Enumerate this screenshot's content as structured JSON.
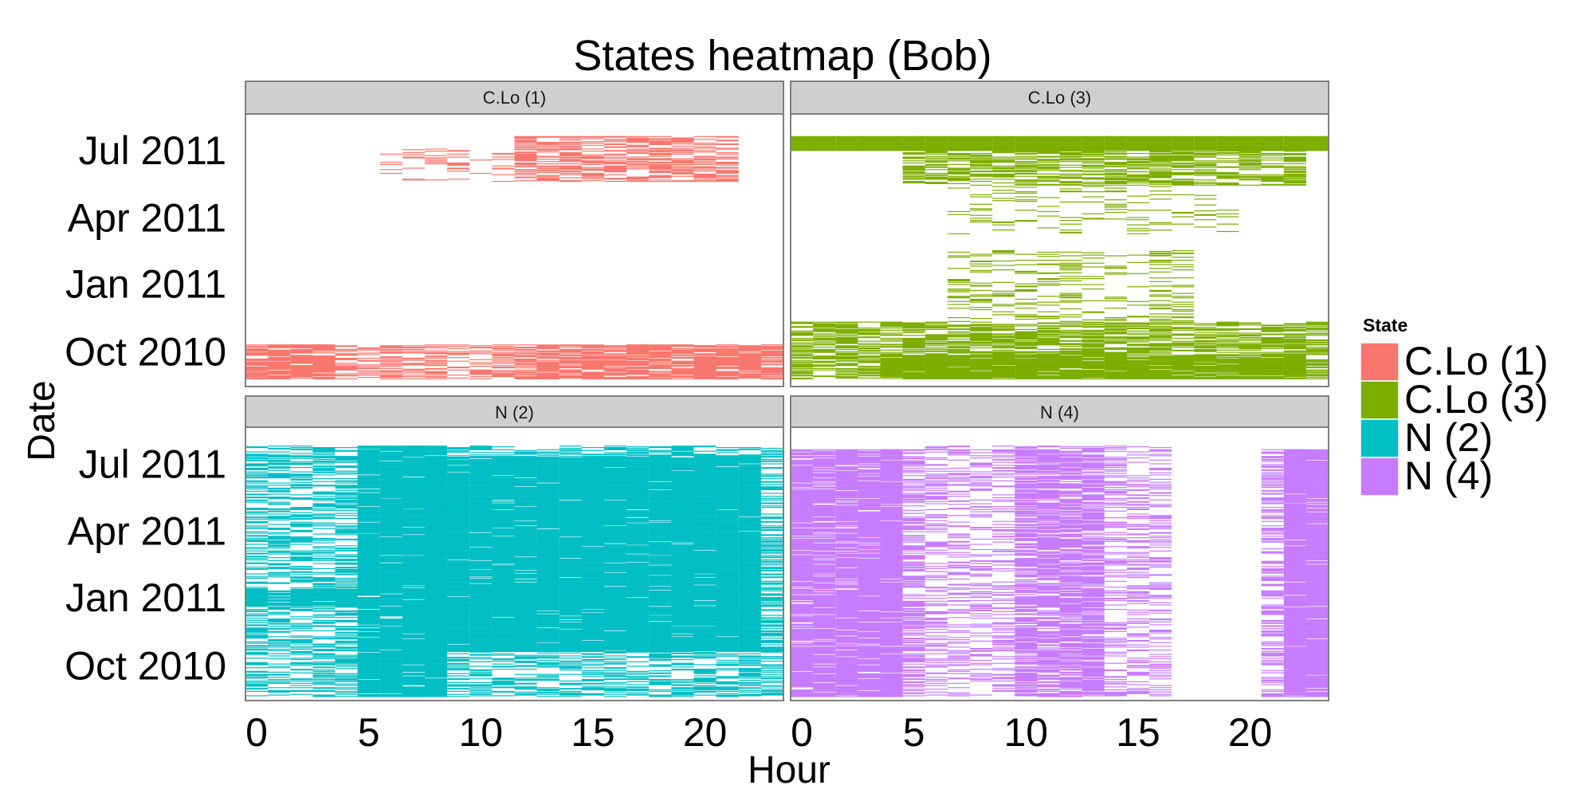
{
  "chart_data": {
    "type": "heatmap",
    "title": "States heatmap (Bob)",
    "xlabel": "Hour",
    "ylabel": "Date",
    "x_ticks": [
      "0",
      "5",
      "10",
      "15",
      "20"
    ],
    "x_tick_values": [
      0,
      5,
      10,
      15,
      20
    ],
    "xlim": [
      -0.5,
      23.5
    ],
    "y_ticks": [
      "Oct 2010",
      "Jan 2011",
      "Apr 2011",
      "Jul 2011"
    ],
    "y_tick_values": [
      "2010-10-01",
      "2011-01-01",
      "2011-04-01",
      "2011-07-01"
    ],
    "ylim": [
      "2010-08-15",
      "2011-08-20"
    ],
    "grid": false,
    "legend": {
      "title": "State",
      "position": "right",
      "entries": [
        "C.Lo (1)",
        "C.Lo (3)",
        "N (2)",
        "N (4)"
      ]
    },
    "panels": [
      {
        "name": "C.Lo (1)",
        "color": "#F8766D",
        "series_note": "sparse summer 2011 afternoons, autumn 2010 across all hours",
        "regions": [
          {
            "hours": [
              12,
              21
            ],
            "dates": [
              "2011-05-20",
              "2011-07-20"
            ],
            "density": 0.55
          },
          {
            "hours": [
              6,
              12
            ],
            "dates": [
              "2011-05-20",
              "2011-07-05"
            ],
            "density": 0.12
          },
          {
            "hours": [
              0,
              23
            ],
            "dates": [
              "2010-08-25",
              "2010-10-10"
            ],
            "density": 0.45
          },
          {
            "hours": [
              0,
              3
            ],
            "dates": [
              "2010-08-25",
              "2010-10-10"
            ],
            "density": 0.7
          },
          {
            "hours": [
              13,
              23
            ],
            "dates": [
              "2010-08-25",
              "2010-10-10"
            ],
            "density": 0.7
          }
        ]
      },
      {
        "name": "C.Lo (3)",
        "color": "#7CAE00",
        "series_note": "dense band July 2011, sparse spring, dense autumn 2010",
        "regions": [
          {
            "hours": [
              0,
              23
            ],
            "dates": [
              "2011-07-01",
              "2011-07-20"
            ],
            "density": 1.0
          },
          {
            "hours": [
              5,
              22
            ],
            "dates": [
              "2011-05-15",
              "2011-07-01"
            ],
            "density": 0.55
          },
          {
            "hours": [
              7,
              19
            ],
            "dates": [
              "2011-03-10",
              "2011-05-15"
            ],
            "density": 0.1
          },
          {
            "hours": [
              7,
              17
            ],
            "dates": [
              "2010-11-10",
              "2011-02-15"
            ],
            "density": 0.18
          },
          {
            "hours": [
              0,
              23
            ],
            "dates": [
              "2010-08-25",
              "2010-11-10"
            ],
            "density": 0.6
          },
          {
            "hours": [
              4,
              22
            ],
            "dates": [
              "2010-08-25",
              "2010-09-25"
            ],
            "density": 0.85
          }
        ]
      },
      {
        "name": "N (2)",
        "color": "#00BFC4",
        "series_note": "dense across most hours and dates, densest 5-22h",
        "regions": [
          {
            "hours": [
              0,
              23
            ],
            "dates": [
              "2010-08-20",
              "2011-07-25"
            ],
            "density": 0.45
          },
          {
            "hours": [
              5,
              8
            ],
            "dates": [
              "2010-08-20",
              "2011-07-25"
            ],
            "density": 0.9
          },
          {
            "hours": [
              8,
              22
            ],
            "dates": [
              "2010-10-20",
              "2011-07-10"
            ],
            "density": 0.95
          },
          {
            "hours": [
              0,
              4
            ],
            "dates": [
              "2010-12-20",
              "2011-01-10"
            ],
            "density": 0.85
          }
        ]
      },
      {
        "name": "N (4)",
        "color": "#C77CFF",
        "series_note": "dense night hours 0-5, sparse mid-day, dense column at 23h",
        "regions": [
          {
            "hours": [
              0,
              4
            ],
            "dates": [
              "2010-08-20",
              "2011-07-20"
            ],
            "density": 0.9
          },
          {
            "hours": [
              4,
              5
            ],
            "dates": [
              "2010-08-20",
              "2011-07-20"
            ],
            "density": 0.55
          },
          {
            "hours": [
              6,
              16
            ],
            "dates": [
              "2010-08-20",
              "2011-07-25"
            ],
            "density": 0.3
          },
          {
            "hours": [
              10,
              13
            ],
            "dates": [
              "2010-08-20",
              "2011-07-20"
            ],
            "density": 0.65
          },
          {
            "hours": [
              22,
              23
            ],
            "dates": [
              "2010-08-20",
              "2011-07-20"
            ],
            "density": 0.95
          },
          {
            "hours": [
              21,
              22
            ],
            "dates": [
              "2010-08-20",
              "2011-07-20"
            ],
            "density": 0.45
          }
        ]
      }
    ]
  }
}
